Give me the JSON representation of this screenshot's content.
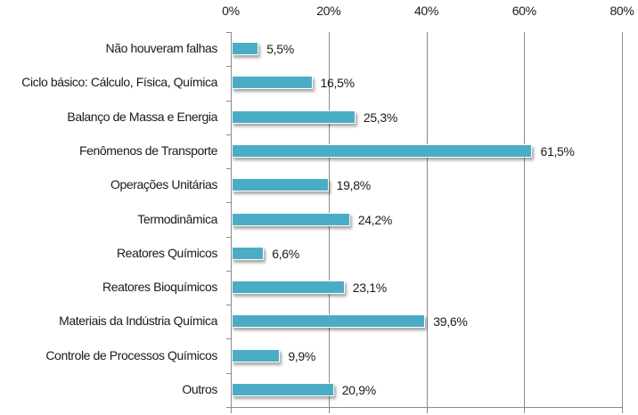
{
  "chart_data": {
    "type": "bar",
    "orientation": "horizontal",
    "title": "",
    "xlabel": "",
    "ylabel": "",
    "xlim": [
      0,
      80
    ],
    "x_ticks": [
      "0%",
      "20%",
      "40%",
      "60%",
      "80%"
    ],
    "x_axis_position": "top",
    "grid": true,
    "legend": null,
    "bar_color": "#4bacc6",
    "categories": [
      "Não houveram falhas",
      "Ciclo básico: Cálculo, Física, Química",
      "Balanço de Massa e Energia",
      "Fenômenos de Transporte",
      "Operações Unitárias",
      "Termodinâmica",
      "Reatores Químicos",
      "Reatores Bioquímicos",
      "Materiais da Indústria Química",
      "Controle de Processos Químicos",
      "Outros"
    ],
    "values": [
      5.5,
      16.5,
      25.3,
      61.5,
      19.8,
      24.2,
      6.6,
      23.1,
      39.6,
      9.9,
      20.9
    ],
    "value_labels": [
      "5,5%",
      "16,5%",
      "25,3%",
      "61,5%",
      "19,8%",
      "24,2%",
      "6,6%",
      "23,1%",
      "39,6%",
      "9,9%",
      "20,9%"
    ]
  }
}
